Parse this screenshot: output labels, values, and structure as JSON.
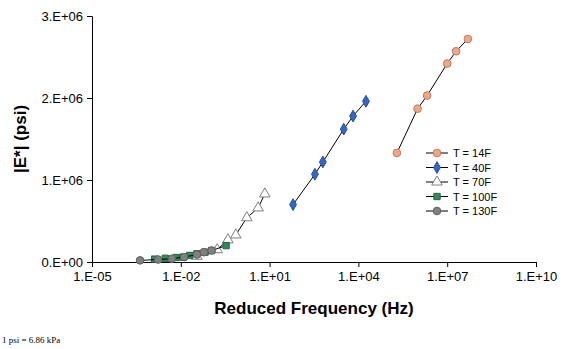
{
  "chart_data": {
    "type": "scatter",
    "x_label": "Reduced Frequency (Hz)",
    "y_label": "|E*| (psi)",
    "annotations": [
      "1 psi = 6.86 kPa"
    ],
    "log": "x",
    "grid": false,
    "legend": "right",
    "line_style": "solid",
    "xlim": [
      1e-05,
      10000000000
    ],
    "xticks": [
      {
        "value": 1e-05,
        "label": "1.E-05"
      },
      {
        "value": 0.01,
        "label": "1.E-02"
      },
      {
        "value": 10,
        "label": "1.E+01"
      },
      {
        "value": 10000,
        "label": "1.E+04"
      },
      {
        "value": 10000000,
        "label": "1.E+07"
      },
      {
        "value": 10000000000,
        "label": "1.E+10"
      }
    ],
    "ylim": [
      0,
      3000000
    ],
    "yticks": [
      {
        "value": 0,
        "label": "0.E+00"
      },
      {
        "value": 1000000,
        "label": "1.E+06"
      },
      {
        "value": 2000000,
        "label": "2.E+06"
      },
      {
        "value": 3000000,
        "label": "3.E+06"
      }
    ],
    "series": [
      {
        "name": "T = 14F",
        "color": "#f4a582",
        "marker": "circle",
        "x": [
          200000,
          1000000,
          2100000,
          10000000,
          20000000,
          50000000
        ],
        "values": [
          1330000,
          1870000,
          2030000,
          2420000,
          2570000,
          2720000
        ]
      },
      {
        "name": "T = 40F",
        "color": "#3366cc",
        "marker": "diamond",
        "x": [
          62,
          340,
          630,
          3200,
          6600,
          18000
        ],
        "values": [
          700000,
          1070000,
          1220000,
          1620000,
          1780000,
          1960000
        ]
      },
      {
        "name": "T = 70F",
        "color": "#ffffff",
        "marker": "triangle",
        "x": [
          0.035,
          0.17,
          0.39,
          0.72,
          1.7,
          4.1,
          6.9
        ],
        "values": [
          70000,
          150000,
          270000,
          330000,
          540000,
          660000,
          830000
        ]
      },
      {
        "name": "T = 100F",
        "color": "#2e8b57",
        "marker": "square",
        "x": [
          0.0013,
          0.003,
          0.007,
          0.012,
          0.02,
          0.035,
          0.066,
          0.11,
          0.34
        ],
        "values": [
          35000,
          45000,
          55000,
          60000,
          80000,
          100000,
          120000,
          140000,
          200000
        ]
      },
      {
        "name": "T = 130F",
        "color": "#808080",
        "marker": "circle",
        "x": [
          0.00042,
          0.0017,
          0.005,
          0.013,
          0.035,
          0.06,
          0.11
        ],
        "values": [
          20000,
          30000,
          40000,
          60000,
          90000,
          120000,
          140000
        ]
      }
    ]
  }
}
